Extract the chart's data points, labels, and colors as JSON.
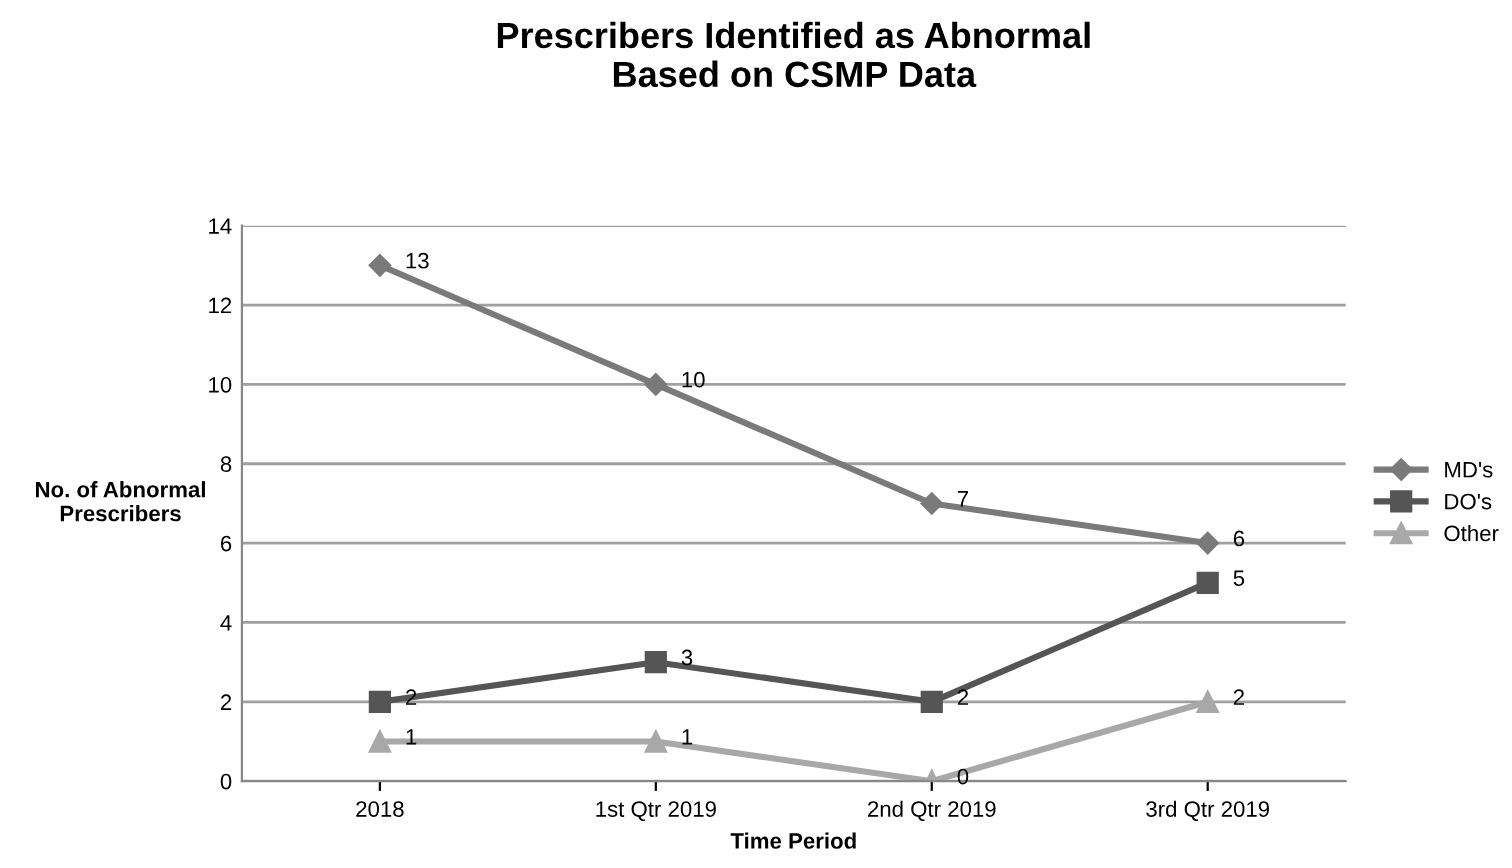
{
  "chart_data": {
    "type": "line",
    "title": "Prescribers Identified as Abnormal\nBased on CSMP Data",
    "xlabel": "Time Period",
    "ylabel": "No. of Abnormal\nPrescribers",
    "categories": [
      "2018",
      "1st Qtr 2019",
      "2nd Qtr 2019",
      "3rd Qtr 2019"
    ],
    "series": [
      {
        "name": "MD's",
        "color": "#7a7a7a",
        "marker": "diamond",
        "values": [
          13,
          10,
          7,
          6
        ]
      },
      {
        "name": "DO's",
        "color": "#555555",
        "marker": "square",
        "values": [
          2,
          3,
          2,
          5
        ]
      },
      {
        "name": "Other",
        "color": "#a8a8a8",
        "marker": "triangle",
        "values": [
          1,
          1,
          0,
          2
        ]
      }
    ],
    "ylim": [
      0,
      14
    ],
    "yticks": [
      0,
      2,
      4,
      6,
      8,
      10,
      12,
      14
    ],
    "grid": "y",
    "legend": "right",
    "data_labels": true
  }
}
